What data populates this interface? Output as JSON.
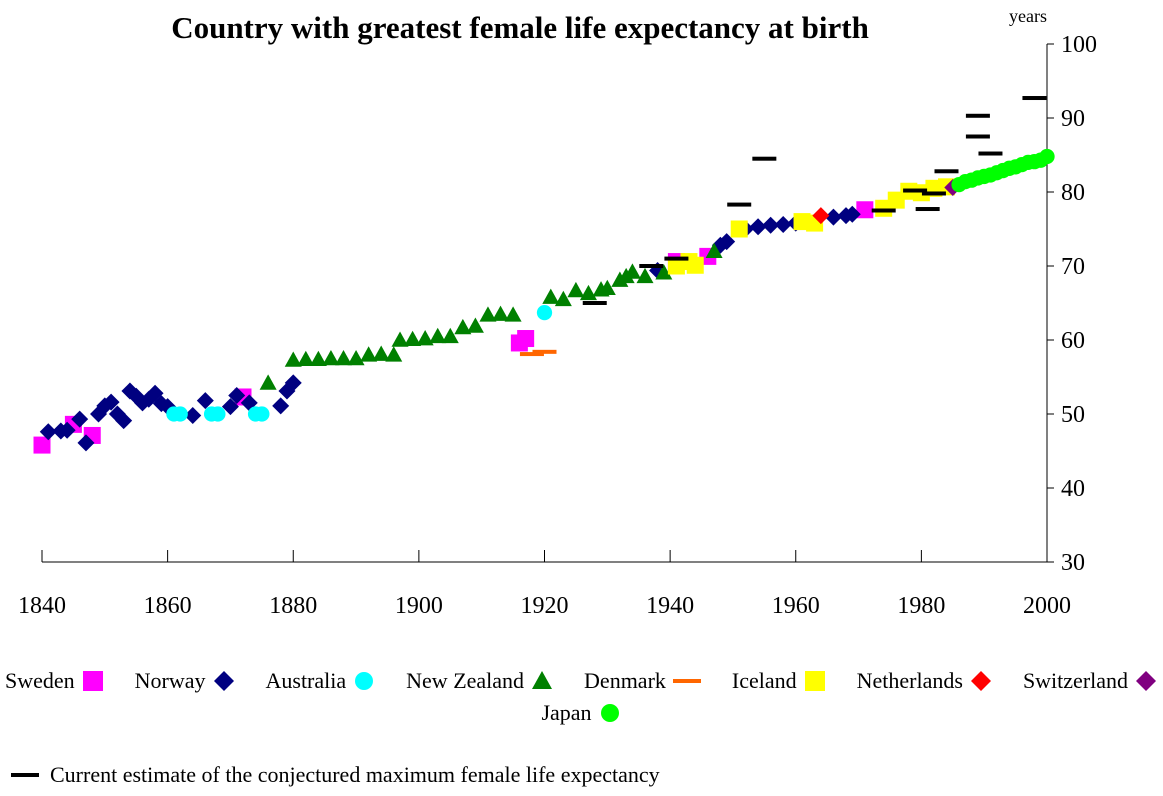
{
  "chart_data": {
    "type": "scatter",
    "title": "Country with greatest female life expectancy at birth",
    "y_label": "years",
    "xlim": [
      1840,
      2000
    ],
    "xticks": [
      1840,
      1860,
      1880,
      1900,
      1920,
      1940,
      1960,
      1980,
      2000
    ],
    "ylim": [
      30,
      100
    ],
    "yticks": [
      30,
      40,
      50,
      60,
      70,
      80,
      90,
      100
    ],
    "y_axis_side": "right",
    "series": [
      {
        "name": "Sweden",
        "color": "#ff00ff",
        "marker": "square",
        "x": [
          1840,
          1845,
          1848,
          1872,
          1916,
          1917,
          1941,
          1946,
          1971
        ],
        "values": [
          45.8,
          48.6,
          47.1,
          52.3,
          59.6,
          60.2,
          70.6,
          71.3,
          77.6
        ]
      },
      {
        "name": "Norway",
        "color": "#000080",
        "marker": "diamond",
        "x": [
          1841,
          1843,
          1844,
          1846,
          1847,
          1849,
          1850,
          1851,
          1852,
          1853,
          1854,
          1855,
          1856,
          1857,
          1858,
          1859,
          1860,
          1864,
          1866,
          1870,
          1871,
          1873,
          1878,
          1879,
          1880,
          1938,
          1948,
          1949,
          1952,
          1954,
          1956,
          1958,
          1960,
          1966,
          1968,
          1969
        ],
        "values": [
          47.6,
          47.7,
          47.8,
          49.3,
          46.1,
          50.0,
          51.1,
          51.6,
          50.0,
          49.1,
          53.1,
          52.4,
          51.5,
          52.0,
          52.8,
          51.4,
          51.0,
          49.8,
          51.8,
          51.0,
          52.5,
          51.5,
          51.1,
          53.1,
          54.2,
          69.4,
          72.8,
          73.3,
          75.0,
          75.3,
          75.5,
          75.6,
          75.8,
          76.6,
          76.8,
          77.0
        ]
      },
      {
        "name": "Australia",
        "color": "#00ffff",
        "marker": "circle",
        "x": [
          1861,
          1862,
          1867,
          1868,
          1874,
          1875,
          1920
        ],
        "values": [
          50.0,
          50.0,
          50.0,
          50.0,
          50.0,
          50.0,
          63.7
        ]
      },
      {
        "name": "New Zealand",
        "color": "#008000",
        "marker": "triangle",
        "x": [
          1876,
          1880,
          1882,
          1884,
          1886,
          1888,
          1890,
          1892,
          1894,
          1896,
          1897,
          1899,
          1901,
          1903,
          1905,
          1907,
          1909,
          1911,
          1913,
          1915,
          1921,
          1923,
          1925,
          1927,
          1929,
          1930,
          1932,
          1933,
          1934,
          1936,
          1939,
          1947
        ],
        "values": [
          54.2,
          57.3,
          57.4,
          57.4,
          57.5,
          57.5,
          57.5,
          58.0,
          58.1,
          58.0,
          60.0,
          60.1,
          60.2,
          60.5,
          60.5,
          61.7,
          61.9,
          63.4,
          63.5,
          63.4,
          65.8,
          65.5,
          66.7,
          66.3,
          66.8,
          67.0,
          68.1,
          68.6,
          69.2,
          68.6,
          69.1,
          72.0
        ]
      },
      {
        "name": "Denmark",
        "color": "#ff6600",
        "marker": "dash",
        "x": [
          1918,
          1920
        ],
        "values": [
          58.1,
          58.4
        ]
      },
      {
        "name": "Iceland",
        "color": "#ffff00",
        "marker": "square",
        "x": [
          1941,
          1943,
          1944,
          1951,
          1961,
          1963,
          1974,
          1976,
          1978,
          1980,
          1982,
          1984
        ],
        "values": [
          70.0,
          70.6,
          70.1,
          75.0,
          76.0,
          75.8,
          77.8,
          78.9,
          80.1,
          79.9,
          80.5,
          80.7
        ]
      },
      {
        "name": "Netherlands",
        "color": "#ff0000",
        "marker": "diamond",
        "x": [
          1964
        ],
        "values": [
          76.8
        ]
      },
      {
        "name": "Switzerland",
        "color": "#800080",
        "marker": "diamond",
        "x": [
          1985
        ],
        "values": [
          80.6
        ]
      },
      {
        "name": "Japan",
        "color": "#00ff00",
        "marker": "circle",
        "x": [
          1986,
          1987,
          1988,
          1989,
          1990,
          1991,
          1992,
          1993,
          1994,
          1995,
          1996,
          1997,
          1998,
          1999,
          2000
        ],
        "values": [
          81.0,
          81.4,
          81.6,
          81.9,
          82.1,
          82.3,
          82.6,
          82.9,
          83.2,
          83.4,
          83.7,
          84.0,
          84.1,
          84.3,
          84.8
        ]
      }
    ],
    "estimate": {
      "name": "Current estimate of the conjectured maximum female life expectancy",
      "color": "#000000",
      "marker": "dash",
      "x": [
        1928,
        1937,
        1941,
        1951,
        1955,
        1974,
        1979,
        1981,
        1982,
        1984,
        1989,
        1989,
        1991,
        1998
      ],
      "values": [
        65.0,
        70.0,
        71.0,
        78.3,
        84.5,
        77.5,
        80.2,
        77.7,
        79.8,
        82.8,
        90.3,
        87.5,
        85.2,
        92.7
      ]
    }
  }
}
